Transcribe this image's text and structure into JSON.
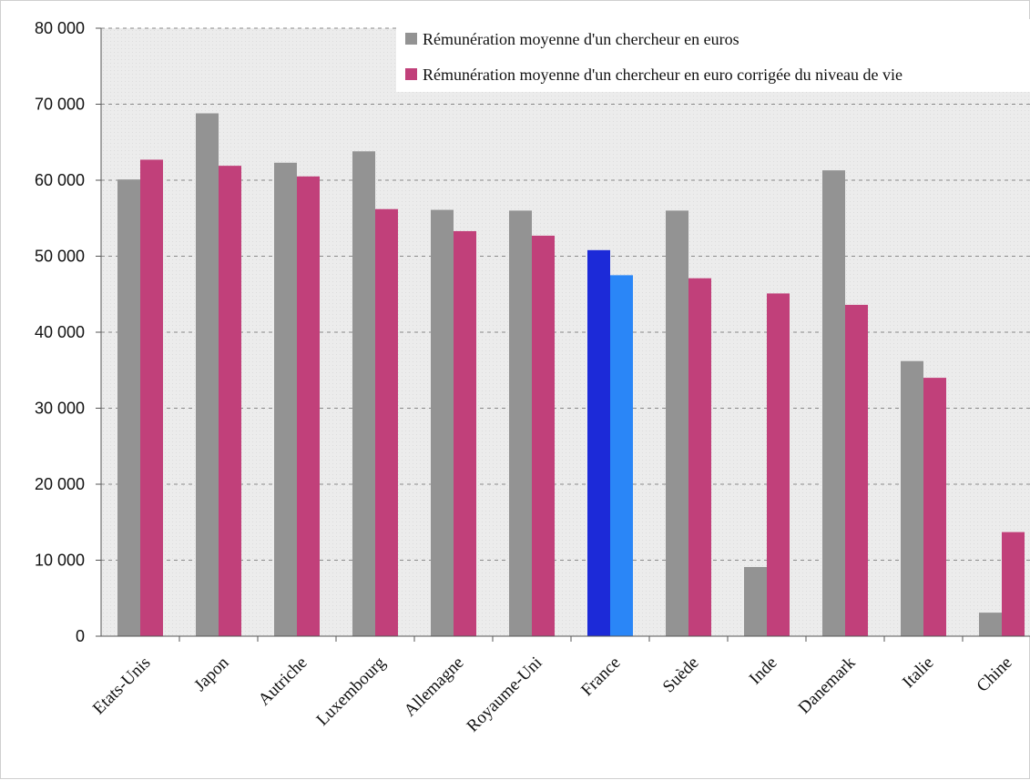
{
  "chart_data": {
    "type": "bar",
    "title": "",
    "xlabel": "",
    "ylabel": "",
    "ylim": [
      0,
      80000
    ],
    "y_ticks": [
      0,
      10000,
      20000,
      30000,
      40000,
      50000,
      60000,
      70000,
      80000
    ],
    "y_tick_labels": [
      "0",
      "10 000",
      "20 000",
      "30 000",
      "40 000",
      "50 000",
      "60 000",
      "70 000",
      "80 000"
    ],
    "grid": true,
    "legend_position": "top-right",
    "categories": [
      "Etats-Unis",
      "Japon",
      "Autriche",
      "Luxembourg",
      "Allemagne",
      "Royaume-Uni",
      "France",
      "Suède",
      "Inde",
      "Danemark",
      "Italie",
      "Chine"
    ],
    "series": [
      {
        "name": "Rémunération moyenne d'un chercheur en euros",
        "color": "#939393",
        "values": [
          60100,
          68800,
          62300,
          63800,
          56100,
          56000,
          50800,
          56000,
          9100,
          61300,
          36200,
          3100
        ]
      },
      {
        "name": "Rémunération moyenne d'un chercheur en euro corrigée du niveau de vie",
        "color": "#c1407a",
        "values": [
          62700,
          61900,
          60500,
          56200,
          53300,
          52700,
          47500,
          47100,
          45100,
          43600,
          34000,
          13700
        ]
      }
    ],
    "highlight": {
      "category": "France",
      "colors": [
        "#1c2ad8",
        "#2a86f7"
      ]
    }
  }
}
